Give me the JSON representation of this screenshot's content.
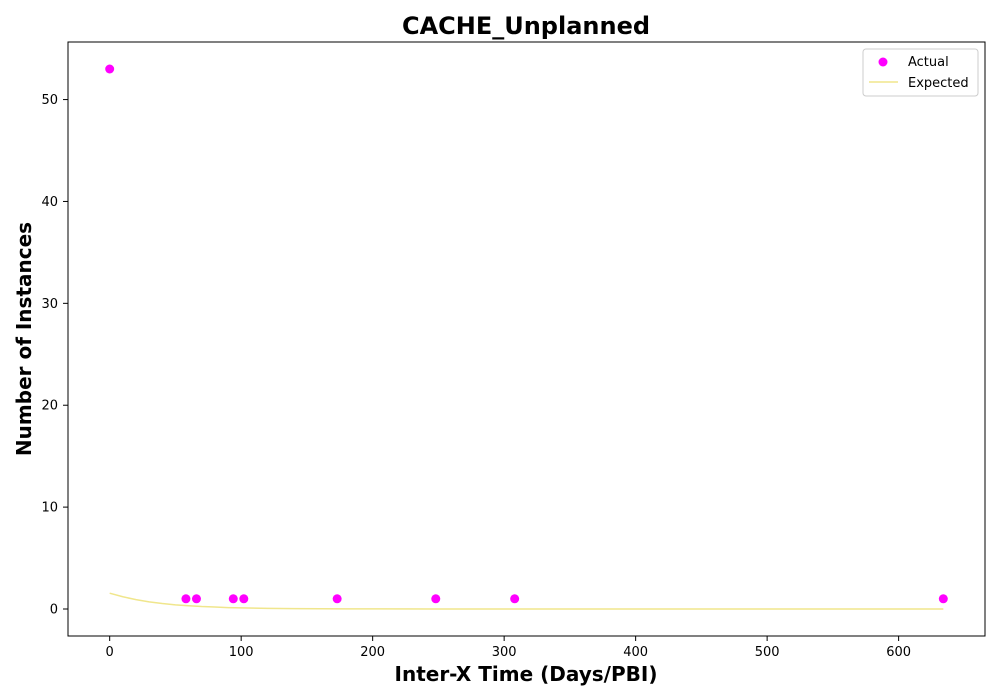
{
  "chart_data": {
    "type": "scatter",
    "title": "CACHE_Unplanned",
    "xlabel": "Inter-X Time (Days/PBI)",
    "ylabel": "Number of Instances",
    "xlim": [
      -31.7,
      665.7
    ],
    "ylim": [
      -2.65,
      55.65
    ],
    "xticks": [
      0,
      100,
      200,
      300,
      400,
      500,
      600
    ],
    "yticks": [
      0,
      10,
      20,
      30,
      40,
      50
    ],
    "grid": false,
    "legend_position": "top-right",
    "series": [
      {
        "name": "Actual",
        "kind": "scatter",
        "color": "#ff00ff",
        "x": [
          0,
          58,
          66,
          94,
          102,
          173,
          248,
          308,
          634
        ],
        "y": [
          53,
          1,
          1,
          1,
          1,
          1,
          1,
          1,
          1
        ]
      },
      {
        "name": "Expected",
        "kind": "line",
        "color": "#f0e68c",
        "x": [
          0,
          10,
          20,
          30,
          40,
          50,
          60,
          70,
          80,
          90,
          100,
          120,
          140,
          160,
          180,
          200,
          250,
          300,
          400,
          500,
          634
        ],
        "y": [
          1.55,
          1.2,
          0.92,
          0.7,
          0.54,
          0.41,
          0.32,
          0.24,
          0.19,
          0.14,
          0.11,
          0.065,
          0.04,
          0.024,
          0.014,
          0.008,
          0.002,
          0.0005,
          0.0,
          0.0,
          0.0
        ]
      }
    ]
  }
}
